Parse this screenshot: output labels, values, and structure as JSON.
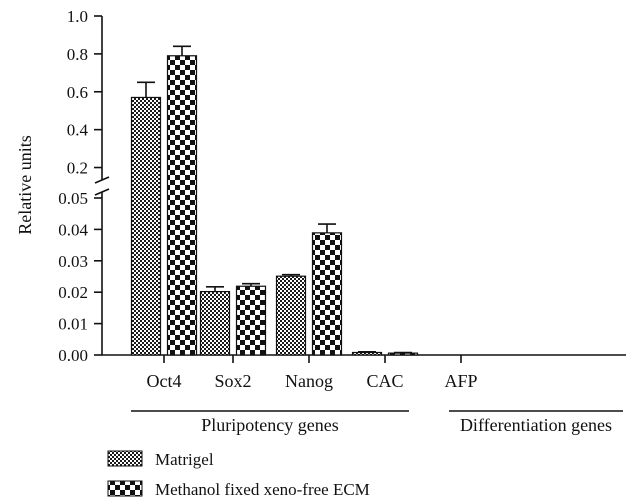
{
  "chart_data": {
    "type": "bar",
    "ylabel": "Relative units",
    "broken_y_axis": true,
    "lower_segment": {
      "range": [
        0,
        0.05
      ],
      "ticks": [
        {
          "value": 0.0,
          "label": "0.00"
        },
        {
          "value": 0.01,
          "label": "0.01"
        },
        {
          "value": 0.02,
          "label": "0.02"
        },
        {
          "value": 0.03,
          "label": "0.03"
        },
        {
          "value": 0.04,
          "label": "0.04"
        },
        {
          "value": 0.05,
          "label": "0.05"
        }
      ]
    },
    "upper_segment": {
      "range": [
        0.15,
        1.0
      ],
      "ticks": [
        {
          "value": 0.2,
          "label": "0.2"
        },
        {
          "value": 0.4,
          "label": "0.4"
        },
        {
          "value": 0.6,
          "label": "0.6"
        },
        {
          "value": 0.8,
          "label": "0.8"
        },
        {
          "value": 1.0,
          "label": "1.0"
        }
      ]
    },
    "categories": [
      "Oct4",
      "Sox2",
      "Nanog",
      "CAC",
      "AFP"
    ],
    "groups": [
      {
        "label": "Pluripotency genes",
        "categories": [
          "Oct4",
          "Sox2",
          "Nanog"
        ]
      },
      {
        "label": "Differentiation genes",
        "categories": [
          "CAC",
          "AFP"
        ]
      }
    ],
    "series": [
      {
        "name": "Matrigel",
        "pattern": "fine-checker",
        "values": [
          0.57,
          0.0202,
          0.0251,
          0.0008,
          0.0
        ],
        "errors": [
          0.08,
          0.0015,
          0.0005,
          0.0002,
          0.0
        ]
      },
      {
        "name": "Methanol fixed xeno-free ECM",
        "pattern": "coarse-checker",
        "values": [
          0.79,
          0.0219,
          0.0389,
          0.0006,
          0.0
        ],
        "errors": [
          0.05,
          0.0008,
          0.0028,
          0.0002,
          0.0
        ]
      }
    ],
    "legend_position": "bottom-left",
    "grid": false
  }
}
